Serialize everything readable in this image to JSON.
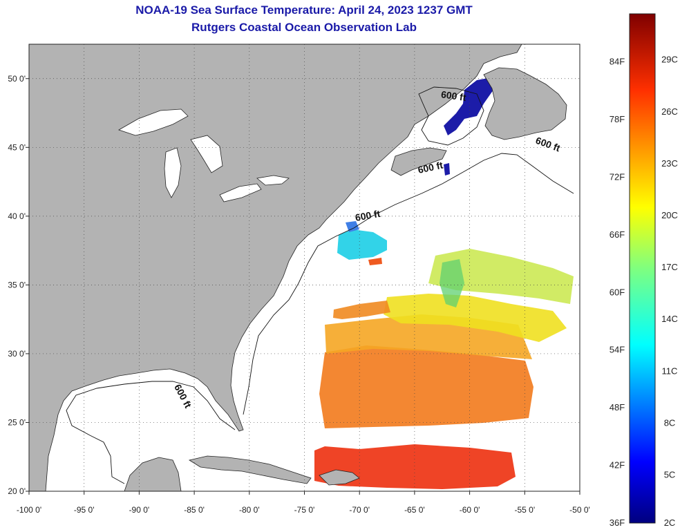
{
  "title": {
    "line1": "NOAA-19 Sea Surface Temperature:  April 24, 2023 1237 GMT",
    "line2": "Rutgers Coastal Ocean Observation Lab"
  },
  "map": {
    "lon_range": [
      -100,
      -50
    ],
    "lat_range": [
      20,
      52.5
    ],
    "lon_ticks": [
      {
        "value": -100,
        "label": "-100 0'"
      },
      {
        "value": -95,
        "label": "-95 0'"
      },
      {
        "value": -90,
        "label": "-90 0'"
      },
      {
        "value": -85,
        "label": "-85 0'"
      },
      {
        "value": -80,
        "label": "-80 0'"
      },
      {
        "value": -75,
        "label": "-75 0'"
      },
      {
        "value": -70,
        "label": "-70 0'"
      },
      {
        "value": -65,
        "label": "-65 0'"
      },
      {
        "value": -60,
        "label": "-60 0'"
      },
      {
        "value": -55,
        "label": "-55 0'"
      },
      {
        "value": -50,
        "label": "-50 0'"
      }
    ],
    "lat_ticks": [
      {
        "value": 20,
        "label": "20 0'"
      },
      {
        "value": 25,
        "label": "25 0'"
      },
      {
        "value": 30,
        "label": "30 0'"
      },
      {
        "value": 35,
        "label": "35 0'"
      },
      {
        "value": 40,
        "label": "40 0'"
      },
      {
        "value": 45,
        "label": "45 0'"
      },
      {
        "value": 50,
        "label": "50 0'"
      }
    ],
    "isobath_label": "600 ft",
    "isobath_labels": [
      {
        "lon": -61.5,
        "lat": 48.5,
        "text": "600 ft",
        "angle": 8
      },
      {
        "lon": -53.0,
        "lat": 45.0,
        "text": "600 ft",
        "angle": 20
      },
      {
        "lon": -63.5,
        "lat": 43.3,
        "text": "600 ft",
        "angle": -12
      },
      {
        "lon": -69.2,
        "lat": 39.8,
        "text": "600 ft",
        "angle": -10
      },
      {
        "lon": -86.3,
        "lat": 26.8,
        "text": "600 ft",
        "angle": 62
      }
    ],
    "colors": {
      "land": "#b3b3b3",
      "grid": "#333333",
      "title": "#1a1aa8"
    }
  },
  "colorbar": {
    "fahrenheit_labels": [
      {
        "value": 36,
        "label": "36F"
      },
      {
        "value": 42,
        "label": "42F"
      },
      {
        "value": 48,
        "label": "48F"
      },
      {
        "value": 54,
        "label": "54F"
      },
      {
        "value": 60,
        "label": "60F"
      },
      {
        "value": 66,
        "label": "66F"
      },
      {
        "value": 72,
        "label": "72F"
      },
      {
        "value": 78,
        "label": "78F"
      },
      {
        "value": 84,
        "label": "84F"
      }
    ],
    "celsius_labels": [
      {
        "value": 2,
        "label": "2C"
      },
      {
        "value": 5,
        "label": "5C"
      },
      {
        "value": 8,
        "label": "8C"
      },
      {
        "value": 11,
        "label": "11C"
      },
      {
        "value": 14,
        "label": "14C"
      },
      {
        "value": 17,
        "label": "17C"
      },
      {
        "value": 20,
        "label": "20C"
      },
      {
        "value": 23,
        "label": "23C"
      },
      {
        "value": 26,
        "label": "26C"
      },
      {
        "value": 29,
        "label": "29C"
      }
    ],
    "range_f": [
      36,
      89
    ]
  }
}
